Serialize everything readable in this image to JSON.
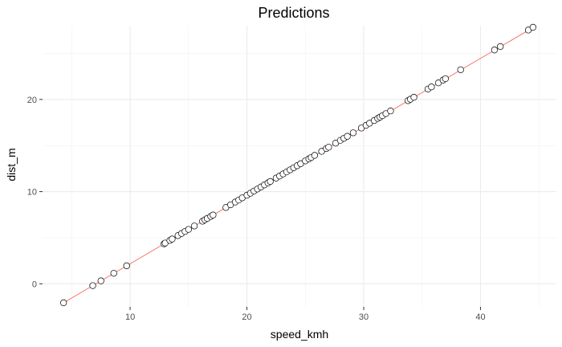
{
  "chart_data": {
    "type": "scatter",
    "title": "Predictions",
    "xlabel": "speed_kmh",
    "ylabel": "dist_m",
    "xlim": [
      2.5,
      46.5
    ],
    "ylim": [
      -2.5,
      28.0
    ],
    "x_ticks": [
      10,
      20,
      30,
      40
    ],
    "y_ticks": [
      0,
      10,
      20
    ],
    "grid": true,
    "line_color": "#f8766d",
    "point_fill": "#ffffff",
    "point_stroke": "#000000",
    "fit_line": {
      "x": [
        4.3,
        44.5
      ],
      "y": [
        -2.06,
        27.8
      ]
    },
    "points": {
      "x": [
        4.3,
        6.8,
        7.5,
        8.6,
        9.7,
        12.9,
        13.0,
        13.4,
        13.6,
        14.1,
        14.4,
        14.7,
        15.0,
        15.5,
        16.2,
        16.4,
        16.6,
        16.9,
        17.1,
        18.2,
        18.6,
        19.0,
        19.3,
        19.6,
        20.0,
        20.3,
        20.6,
        20.9,
        21.2,
        21.5,
        21.8,
        22.0,
        22.5,
        22.8,
        23.1,
        23.4,
        23.7,
        24.0,
        24.3,
        24.6,
        25.0,
        25.3,
        25.5,
        25.8,
        26.4,
        26.8,
        27.0,
        27.6,
        28.0,
        28.3,
        28.6,
        29.1,
        29.8,
        30.2,
        30.5,
        30.9,
        31.2,
        31.4,
        31.6,
        31.9,
        32.3,
        33.8,
        34.0,
        34.3,
        35.5,
        35.8,
        36.4,
        36.8,
        37.0,
        38.3,
        41.2,
        41.7,
        44.1,
        44.5
      ],
      "y": [
        -2.06,
        -0.2,
        0.32,
        1.14,
        1.95,
        4.34,
        4.42,
        4.71,
        4.86,
        5.23,
        5.46,
        5.68,
        5.9,
        6.27,
        6.79,
        6.94,
        7.09,
        7.31,
        7.46,
        8.28,
        8.57,
        8.87,
        9.09,
        9.32,
        9.61,
        9.83,
        10.06,
        10.28,
        10.5,
        10.73,
        10.95,
        11.1,
        11.47,
        11.69,
        11.92,
        12.14,
        12.36,
        12.59,
        12.81,
        13.03,
        13.33,
        13.55,
        13.7,
        13.93,
        14.37,
        14.67,
        14.82,
        15.26,
        15.56,
        15.78,
        16.0,
        16.38,
        16.9,
        17.19,
        17.42,
        17.71,
        17.94,
        18.08,
        18.23,
        18.46,
        18.75,
        19.87,
        20.02,
        20.24,
        21.13,
        21.36,
        21.8,
        22.1,
        22.25,
        23.22,
        25.37,
        25.74,
        27.53,
        27.83
      ]
    }
  }
}
